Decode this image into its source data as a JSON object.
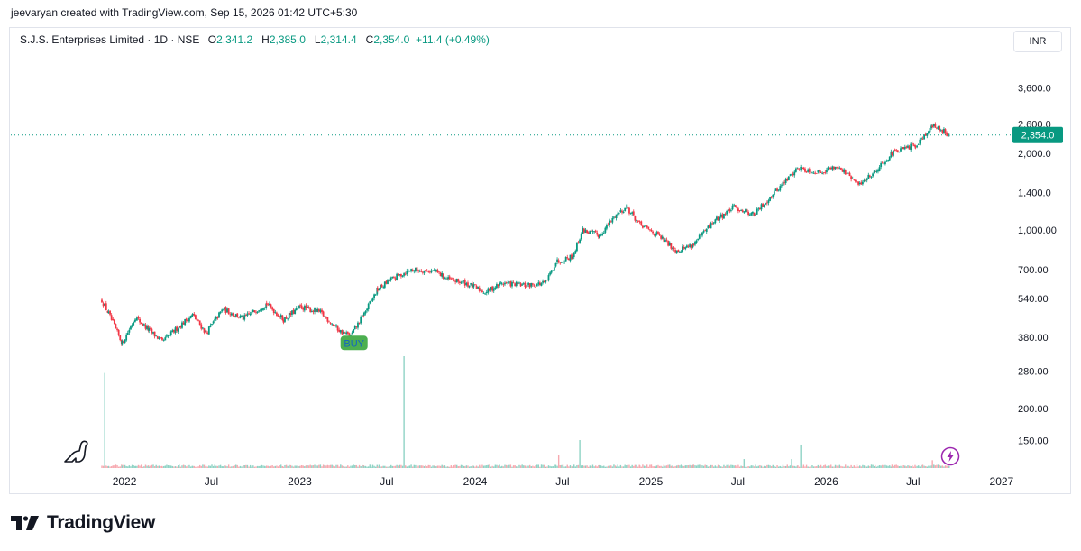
{
  "credit": "jeevaryan created with TradingView.com, Sep 15, 2026 01:42 UTC+5:30",
  "legend": {
    "symbol": "S.J.S. Enterprises Limited · 1D · NSE",
    "open_label": "O",
    "open": "2,341.2",
    "high_label": "H",
    "high": "2,385.0",
    "low_label": "L",
    "low": "2,314.4",
    "close_label": "C",
    "close": "2,354.0",
    "change": "+11.4 (+0.49%)"
  },
  "currency_button": "INR",
  "brand": "TradingView",
  "icons": {
    "watermark": "dinosaur-icon",
    "brand": "tradingview-logo-icon",
    "alert": "lightning-icon"
  },
  "colors": {
    "up": "#089981",
    "down": "#f23645",
    "buy_marker": "#4caf50",
    "price_tag": "#089981"
  },
  "chart_data": {
    "type": "candlestick",
    "y_scale": "log",
    "y_ticks": [
      3600,
      2600,
      2000,
      1400,
      1000,
      700,
      540,
      380,
      280,
      200,
      150
    ],
    "y_tick_labels": [
      "3,600.0",
      "2,600.0",
      "2,000.0",
      "1,400.0",
      "1,000.00",
      "700.00",
      "540.00",
      "380.00",
      "280.00",
      "200.00",
      "150.00"
    ],
    "x_ticks": [
      {
        "label": "2022",
        "date": "2022-01-01"
      },
      {
        "label": "Jul",
        "date": "2022-07-01"
      },
      {
        "label": "2023",
        "date": "2023-01-01"
      },
      {
        "label": "Jul",
        "date": "2023-07-01"
      },
      {
        "label": "2024",
        "date": "2024-01-01"
      },
      {
        "label": "Jul",
        "date": "2024-07-01"
      },
      {
        "label": "2025",
        "date": "2025-01-01"
      },
      {
        "label": "Jul",
        "date": "2025-07-01"
      },
      {
        "label": "2026",
        "date": "2026-01-01"
      },
      {
        "label": "Jul",
        "date": "2026-07-01"
      },
      {
        "label": "2027",
        "date": "2027-01-01"
      }
    ],
    "x_range": [
      "2021-11-15",
      "2027-01-20"
    ],
    "last_price": 2354.0,
    "last_price_label": "2,354.0",
    "price_path": [
      {
        "date": "2021-11-15",
        "price": 530
      },
      {
        "date": "2021-11-29",
        "price": 470
      },
      {
        "date": "2021-12-27",
        "price": 360
      },
      {
        "date": "2022-01-24",
        "price": 455
      },
      {
        "date": "2022-02-21",
        "price": 405
      },
      {
        "date": "2022-03-21",
        "price": 365
      },
      {
        "date": "2022-04-25",
        "price": 420
      },
      {
        "date": "2022-05-23",
        "price": 465
      },
      {
        "date": "2022-06-20",
        "price": 395
      },
      {
        "date": "2022-07-25",
        "price": 490
      },
      {
        "date": "2022-09-05",
        "price": 450
      },
      {
        "date": "2022-10-24",
        "price": 515
      },
      {
        "date": "2022-11-28",
        "price": 445
      },
      {
        "date": "2023-01-02",
        "price": 500
      },
      {
        "date": "2023-02-13",
        "price": 475
      },
      {
        "date": "2023-03-27",
        "price": 400
      },
      {
        "date": "2023-04-17",
        "price": 385
      },
      {
        "date": "2023-05-15",
        "price": 470
      },
      {
        "date": "2023-06-12",
        "price": 585
      },
      {
        "date": "2023-07-10",
        "price": 640
      },
      {
        "date": "2023-08-21",
        "price": 700
      },
      {
        "date": "2023-10-09",
        "price": 690
      },
      {
        "date": "2023-11-06",
        "price": 640
      },
      {
        "date": "2023-12-11",
        "price": 620
      },
      {
        "date": "2024-01-22",
        "price": 570
      },
      {
        "date": "2024-02-26",
        "price": 620
      },
      {
        "date": "2024-04-15",
        "price": 605
      },
      {
        "date": "2024-05-27",
        "price": 620
      },
      {
        "date": "2024-06-17",
        "price": 750
      },
      {
        "date": "2024-07-22",
        "price": 790
      },
      {
        "date": "2024-08-12",
        "price": 1000
      },
      {
        "date": "2024-09-16",
        "price": 950
      },
      {
        "date": "2024-10-21",
        "price": 1150
      },
      {
        "date": "2024-11-11",
        "price": 1230
      },
      {
        "date": "2024-12-09",
        "price": 1050
      },
      {
        "date": "2025-01-13",
        "price": 960
      },
      {
        "date": "2025-02-24",
        "price": 830
      },
      {
        "date": "2025-03-31",
        "price": 880
      },
      {
        "date": "2025-05-12",
        "price": 1080
      },
      {
        "date": "2025-06-23",
        "price": 1230
      },
      {
        "date": "2025-08-04",
        "price": 1150
      },
      {
        "date": "2025-09-15",
        "price": 1400
      },
      {
        "date": "2025-11-03",
        "price": 1750
      },
      {
        "date": "2025-12-15",
        "price": 1680
      },
      {
        "date": "2026-01-26",
        "price": 1780
      },
      {
        "date": "2026-03-09",
        "price": 1500
      },
      {
        "date": "2026-04-13",
        "price": 1700
      },
      {
        "date": "2026-05-18",
        "price": 2000
      },
      {
        "date": "2026-07-06",
        "price": 2150
      },
      {
        "date": "2026-08-10",
        "price": 2550
      },
      {
        "date": "2026-08-31",
        "price": 2460
      },
      {
        "date": "2026-09-14",
        "price": 2354
      }
    ],
    "volume_spikes": [
      {
        "date": "2021-11-22",
        "rel": 0.85
      },
      {
        "date": "2023-08-07",
        "rel": 1.0
      },
      {
        "date": "2024-08-05",
        "rel": 0.25
      },
      {
        "date": "2024-06-24",
        "rel": 0.12
      },
      {
        "date": "2025-11-10",
        "rel": 0.21
      },
      {
        "date": "2025-07-14",
        "rel": 0.08
      },
      {
        "date": "2025-10-20",
        "rel": 0.08
      },
      {
        "date": "2026-08-10",
        "rel": 0.07
      }
    ],
    "annotations": [
      {
        "text": "BUY",
        "date": "2023-04-24",
        "price": 370
      }
    ]
  }
}
